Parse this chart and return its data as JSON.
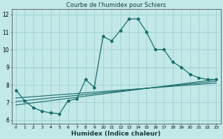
{
  "title": "Courbe de l'humidex pour Schiers",
  "xlabel": "Humidex (Indice chaleur)",
  "bg_color": "#c2e8e8",
  "grid_color": "#9fcfcf",
  "line_color": "#1a6b6b",
  "xlim": [
    -0.5,
    23.5
  ],
  "ylim": [
    5.8,
    12.3
  ],
  "xticks": [
    0,
    1,
    2,
    3,
    4,
    5,
    6,
    7,
    8,
    9,
    10,
    11,
    12,
    13,
    14,
    15,
    16,
    17,
    18,
    19,
    20,
    21,
    22,
    23
  ],
  "yticks": [
    6,
    7,
    8,
    9,
    10,
    11,
    12
  ],
  "main_x": [
    0,
    1,
    2,
    3,
    4,
    5,
    6,
    7,
    8,
    9,
    10,
    11,
    12,
    13,
    14,
    15,
    16,
    17,
    18,
    19,
    20,
    21,
    22,
    23
  ],
  "main_y": [
    7.7,
    7.1,
    6.7,
    6.5,
    6.4,
    6.35,
    7.1,
    7.2,
    8.3,
    7.85,
    10.75,
    10.5,
    11.1,
    11.75,
    11.75,
    11.0,
    10.0,
    10.0,
    9.3,
    9.0,
    8.6,
    8.4,
    8.3,
    8.3
  ],
  "line1_x": [
    0,
    23
  ],
  "line1_y": [
    6.85,
    8.3
  ],
  "line2_x": [
    0,
    23
  ],
  "line2_y": [
    7.05,
    8.2
  ],
  "line3_x": [
    0,
    23
  ],
  "line3_y": [
    7.25,
    8.1
  ]
}
